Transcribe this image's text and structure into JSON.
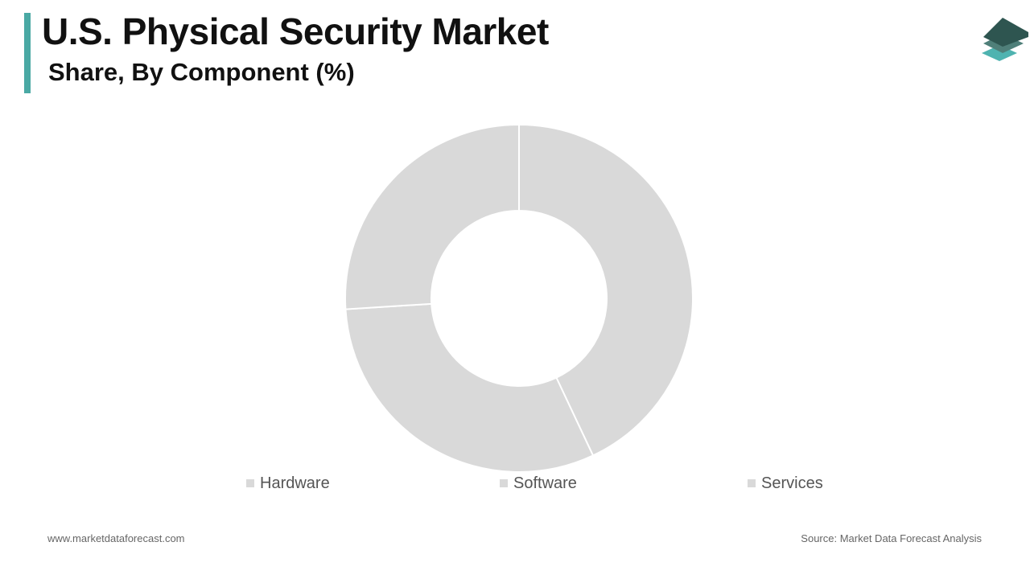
{
  "header": {
    "title": "U.S. Physical Security Market",
    "subtitle": "Share, By Component (%)"
  },
  "colors": {
    "accent": "#4aa9a4",
    "slice": "#d9d9d9",
    "slice_border": "#ffffff",
    "logo_dark": "#2e5550",
    "logo_mid": "#4f7f79",
    "logo_light": "#4fb3b0"
  },
  "icons": {
    "logo": "stacked-layers-logo-icon"
  },
  "chart_data": {
    "type": "pie",
    "style": "donut",
    "categories": [
      "Hardware",
      "Software",
      "Services"
    ],
    "values": [
      43,
      31,
      26
    ],
    "legend": "bottom"
  },
  "footer": {
    "website": "www.marketdataforecast.com",
    "source": "Source: Market Data Forecast Analysis"
  }
}
